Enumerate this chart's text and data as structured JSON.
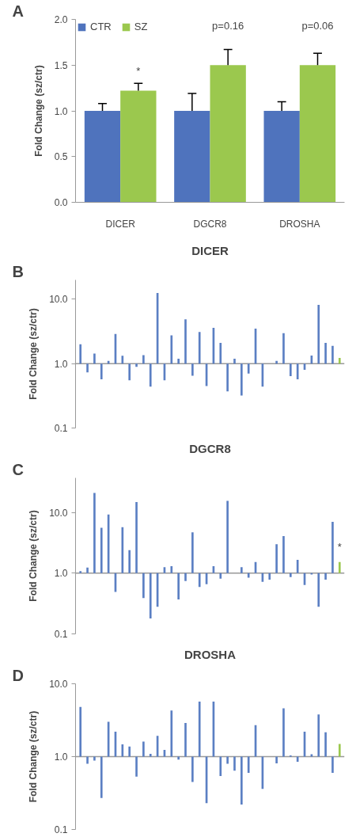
{
  "chart_data": [
    {
      "type": "bar",
      "categories": [
        "DICER",
        "DGCR8",
        "DROSHA"
      ],
      "ylabel": "Fold Change (sz/ctr)",
      "ylim": [
        0,
        2
      ],
      "yticks": [
        {
          "value": 0,
          "label": "0.0"
        },
        {
          "value": 0.5,
          "label": "0.5"
        },
        {
          "value": 1,
          "label": "1.0"
        },
        {
          "value": 1.5,
          "label": "1.5"
        },
        {
          "value": 2,
          "label": "2.0"
        }
      ],
      "legend": "top left",
      "series": [
        {
          "name": "CTR",
          "color": "#4f73bd",
          "values": [
            1.0,
            1.0,
            1.0
          ],
          "errors": [
            [
              1.0,
              1.08
            ],
            [
              1.0,
              1.19
            ],
            [
              1.0,
              1.1
            ]
          ]
        },
        {
          "name": "SZ",
          "color": "#9bc84e",
          "values": [
            1.22,
            1.5,
            1.5
          ],
          "errors": [
            [
              1.22,
              1.3
            ],
            [
              1.5,
              1.67
            ],
            [
              1.5,
              1.63
            ]
          ]
        }
      ],
      "annotations": [
        "A",
        "*",
        "p=0.16",
        "p=0.06"
      ]
    },
    {
      "type": "bar",
      "title": "DICER",
      "log": "y",
      "ylabel": "Fold Change (sz/ctr)",
      "ylim": [
        0.1,
        20
      ],
      "yticks": [
        {
          "value": 0.1,
          "label": "0.1"
        },
        {
          "value": 1,
          "label": "1.0"
        },
        {
          "value": 10,
          "label": "10.0"
        }
      ],
      "tick_labels": "y",
      "ref_lines": [
        {
          "axis": "y",
          "value": 1,
          "color": "#999999"
        }
      ],
      "categories": [
        null,
        null,
        null,
        null,
        null,
        null,
        null,
        null,
        null,
        null,
        null,
        null,
        null,
        null,
        null,
        null,
        null,
        null,
        null,
        null,
        null,
        null,
        null,
        null,
        null,
        null,
        null,
        null,
        null,
        null,
        null,
        null,
        null,
        null,
        null,
        null,
        null,
        null
      ],
      "base": [
        1,
        1,
        1,
        1,
        1,
        1,
        1,
        1,
        1,
        1,
        1,
        1,
        1,
        1,
        1,
        1,
        1,
        1,
        1,
        1,
        1,
        1,
        1,
        1,
        1,
        1,
        1,
        null,
        1,
        1,
        1,
        1,
        1,
        1,
        1,
        1,
        1,
        1
      ],
      "values": [
        1.0,
        -0.27,
        0.43,
        -0.43,
        0.1,
        1.9,
        0.33,
        -0.45,
        -0.11,
        0.36,
        -0.56,
        11.5,
        -0.45,
        1.75,
        0.19,
        3.9,
        -0.35,
        2.1,
        -0.55,
        2.6,
        1.1,
        -0.63,
        0.19,
        -0.68,
        -0.3,
        2.5,
        -0.56,
        null,
        0.1,
        1.97,
        -0.36,
        -0.43,
        -0.2,
        0.34,
        7.2,
        1.1,
        0.89,
        0.23
      ],
      "colors": [
        "#5b7fc3",
        "#5b7fc3",
        "#5b7fc3",
        "#5b7fc3",
        "#5b7fc3",
        "#5b7fc3",
        "#5b7fc3",
        "#5b7fc3",
        "#5b7fc3",
        "#5b7fc3",
        "#5b7fc3",
        "#5b7fc3",
        "#5b7fc3",
        "#5b7fc3",
        "#5b7fc3",
        "#5b7fc3",
        "#5b7fc3",
        "#5b7fc3",
        "#5b7fc3",
        "#5b7fc3",
        "#5b7fc3",
        "#5b7fc3",
        "#5b7fc3",
        "#5b7fc3",
        "#5b7fc3",
        "#5b7fc3",
        "#5b7fc3",
        "#5b7fc3",
        "#5b7fc3",
        "#5b7fc3",
        "#5b7fc3",
        "#5b7fc3",
        "#5b7fc3",
        "#5b7fc3",
        "#5b7fc3",
        "#5b7fc3",
        "#5b7fc3",
        "#9bc84e"
      ],
      "annotations": [
        "B"
      ]
    },
    {
      "type": "bar",
      "title": "DGCR8",
      "log": "y",
      "ylabel": "Fold Change (sz/ctr)",
      "ylim": [
        0.1,
        37
      ],
      "yticks": [
        {
          "value": 0.1,
          "label": "0.1"
        },
        {
          "value": 1,
          "label": "1.0"
        },
        {
          "value": 10,
          "label": "10.0"
        }
      ],
      "tick_labels": "y",
      "ref_lines": [
        {
          "axis": "y",
          "value": 1,
          "color": "#999999"
        }
      ],
      "categories": [
        null,
        null,
        null,
        null,
        null,
        null,
        null,
        null,
        null,
        null,
        null,
        null,
        null,
        null,
        null,
        null,
        null,
        null,
        null,
        null,
        null,
        null,
        null,
        null,
        null,
        null,
        null,
        null,
        null,
        null,
        null,
        null,
        null,
        null,
        null,
        null,
        null,
        null
      ],
      "base": [
        1,
        1,
        1,
        1,
        1,
        1,
        1,
        1,
        1,
        1,
        1,
        1,
        1,
        1,
        1,
        1,
        1,
        1,
        1,
        1,
        1,
        1,
        null,
        1,
        1,
        1,
        1,
        1,
        1,
        1,
        1,
        1,
        1,
        1,
        1,
        1,
        1,
        1
      ],
      "values": [
        0.08,
        0.24,
        19.9,
        4.6,
        8.2,
        -0.51,
        4.7,
        1.4,
        13.8,
        -0.61,
        -0.82,
        -0.72,
        0.25,
        0.3,
        -0.63,
        -0.26,
        3.7,
        -0.41,
        -0.34,
        0.3,
        -0.19,
        14.5,
        null,
        0.25,
        -0.16,
        0.52,
        -0.28,
        -0.22,
        2.0,
        3.06,
        -0.14,
        0.66,
        -0.36,
        -0.05,
        -0.72,
        -0.22,
        6.0,
        0.52
      ],
      "colors": [
        "#5b7fc3",
        "#5b7fc3",
        "#5b7fc3",
        "#5b7fc3",
        "#5b7fc3",
        "#5b7fc3",
        "#5b7fc3",
        "#5b7fc3",
        "#5b7fc3",
        "#5b7fc3",
        "#5b7fc3",
        "#5b7fc3",
        "#5b7fc3",
        "#5b7fc3",
        "#5b7fc3",
        "#5b7fc3",
        "#5b7fc3",
        "#5b7fc3",
        "#5b7fc3",
        "#5b7fc3",
        "#5b7fc3",
        "#5b7fc3",
        "#5b7fc3",
        "#5b7fc3",
        "#5b7fc3",
        "#5b7fc3",
        "#5b7fc3",
        "#5b7fc3",
        "#5b7fc3",
        "#5b7fc3",
        "#5b7fc3",
        "#5b7fc3",
        "#5b7fc3",
        "#5b7fc3",
        "#5b7fc3",
        "#5b7fc3",
        "#5b7fc3",
        "#9bc84e"
      ],
      "annotations": [
        "C",
        "*"
      ]
    },
    {
      "type": "bar",
      "title": "DROSHA",
      "log": "y",
      "ylabel": "Fold Change (sz/ctr)",
      "ylim": [
        0.1,
        10
      ],
      "yticks": [
        {
          "value": 0.1,
          "label": "0.1"
        },
        {
          "value": 1,
          "label": "1.0"
        },
        {
          "value": 10,
          "label": "10.0"
        }
      ],
      "tick_labels": "y",
      "ref_lines": [
        {
          "axis": "y",
          "value": 1,
          "color": "#999999"
        }
      ],
      "categories": [
        null,
        null,
        null,
        null,
        null,
        null,
        null,
        null,
        null,
        null,
        null,
        null,
        null,
        null,
        null,
        null,
        null,
        null,
        null,
        null,
        null,
        null,
        null,
        null,
        null,
        null,
        null,
        null,
        null,
        null,
        null,
        null,
        null,
        null,
        null,
        null,
        null,
        null
      ],
      "base": [
        1,
        1,
        1,
        1,
        1,
        1,
        1,
        1,
        1,
        1,
        1,
        1,
        1,
        1,
        1,
        1,
        1,
        1,
        1,
        1,
        1,
        1,
        1,
        1,
        1,
        1,
        1,
        null,
        1,
        1,
        1,
        1,
        1,
        1,
        1,
        1,
        1,
        1
      ],
      "values": [
        3.8,
        -0.2,
        -0.12,
        -0.73,
        2.0,
        1.2,
        0.47,
        0.38,
        -0.47,
        0.61,
        0.09,
        0.93,
        0.24,
        3.3,
        -0.09,
        1.9,
        -0.55,
        4.7,
        -0.77,
        4.7,
        -0.46,
        -0.2,
        -0.36,
        -0.78,
        -0.4,
        1.7,
        -0.64,
        null,
        -0.19,
        3.6,
        0.04,
        -0.15,
        1.2,
        0.08,
        2.8,
        1.16,
        -0.4,
        0.49
      ],
      "colors": [
        "#5b7fc3",
        "#5b7fc3",
        "#5b7fc3",
        "#5b7fc3",
        "#5b7fc3",
        "#5b7fc3",
        "#5b7fc3",
        "#5b7fc3",
        "#5b7fc3",
        "#5b7fc3",
        "#5b7fc3",
        "#5b7fc3",
        "#5b7fc3",
        "#5b7fc3",
        "#5b7fc3",
        "#5b7fc3",
        "#5b7fc3",
        "#5b7fc3",
        "#5b7fc3",
        "#5b7fc3",
        "#5b7fc3",
        "#5b7fc3",
        "#5b7fc3",
        "#5b7fc3",
        "#5b7fc3",
        "#5b7fc3",
        "#5b7fc3",
        "#5b7fc3",
        "#5b7fc3",
        "#5b7fc3",
        "#5b7fc3",
        "#5b7fc3",
        "#5b7fc3",
        "#5b7fc3",
        "#5b7fc3",
        "#5b7fc3",
        "#5b7fc3",
        "#9bc84e"
      ],
      "annotations": [
        "D"
      ]
    }
  ]
}
